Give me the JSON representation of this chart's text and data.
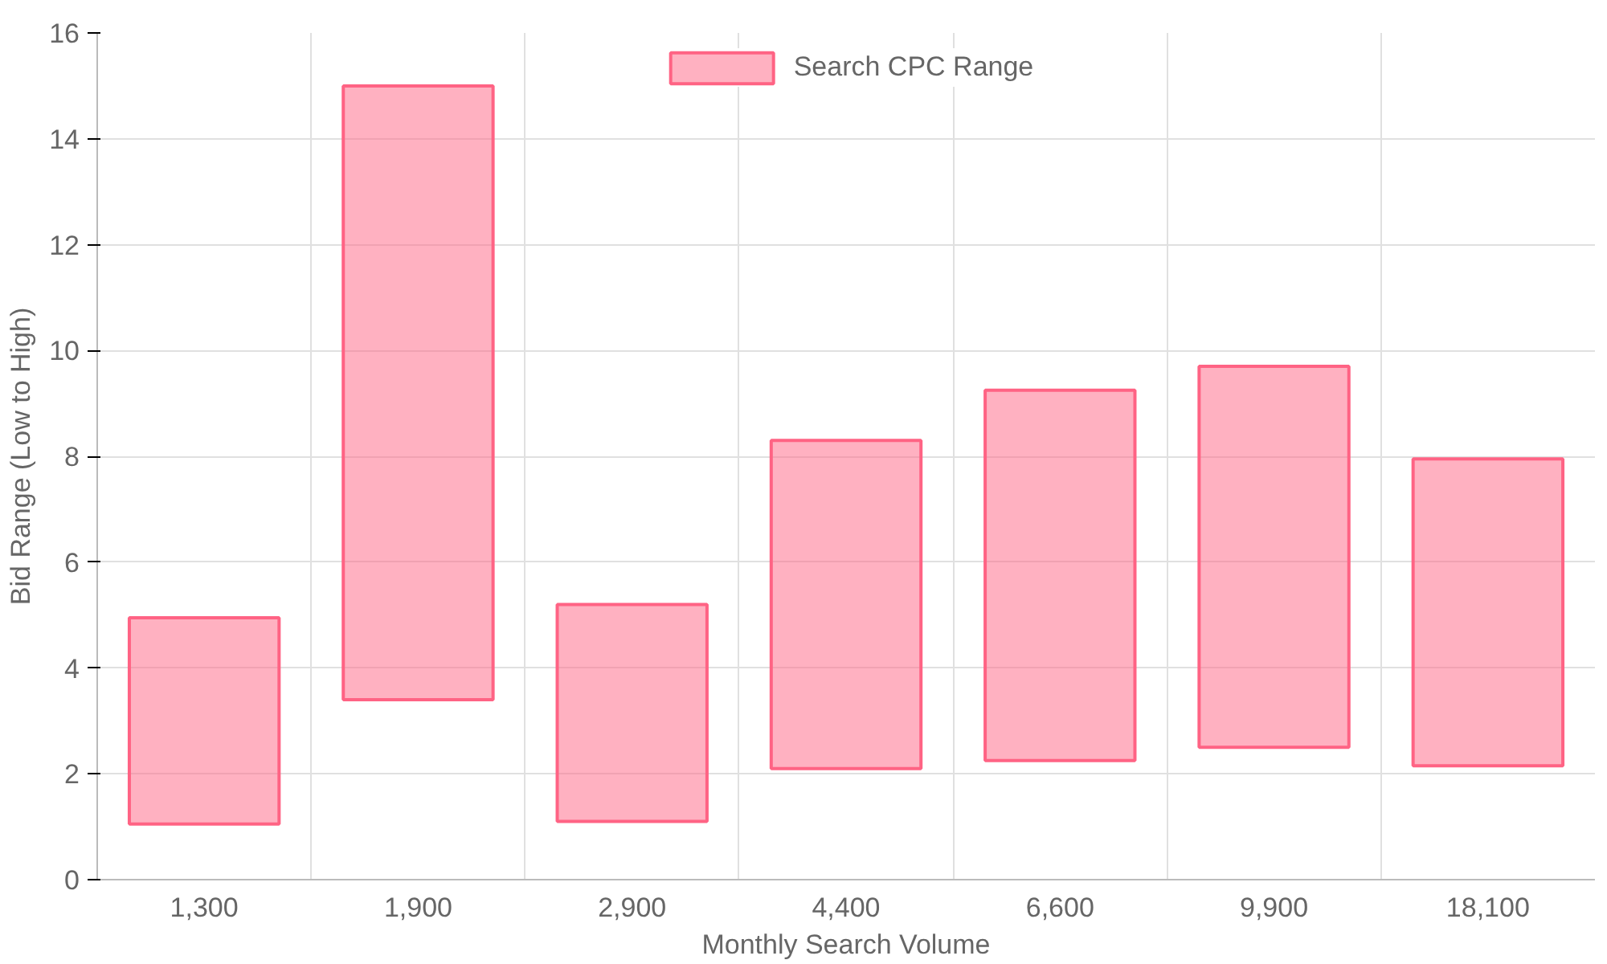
{
  "chart_data": {
    "type": "bar",
    "xlabel": "Monthly Search Volume",
    "ylabel": "Bid Range (Low to High)",
    "categories": [
      "1,300",
      "1,900",
      "2,900",
      "4,400",
      "6,600",
      "9,900",
      "18,100"
    ],
    "series": [
      {
        "name": "Search CPC Range",
        "color": "#ff6384",
        "values": [
          3.9,
          11.6,
          4.1,
          6.2,
          7.0,
          7.2,
          5.8
        ],
        "base": [
          1.05,
          3.4,
          1.1,
          2.1,
          2.25,
          2.5,
          2.15
        ]
      }
    ],
    "ylim": [
      0,
      16
    ],
    "yticks": [
      0,
      2,
      4,
      6,
      8,
      10,
      12,
      14,
      16
    ],
    "grid": true,
    "legend": "top"
  }
}
